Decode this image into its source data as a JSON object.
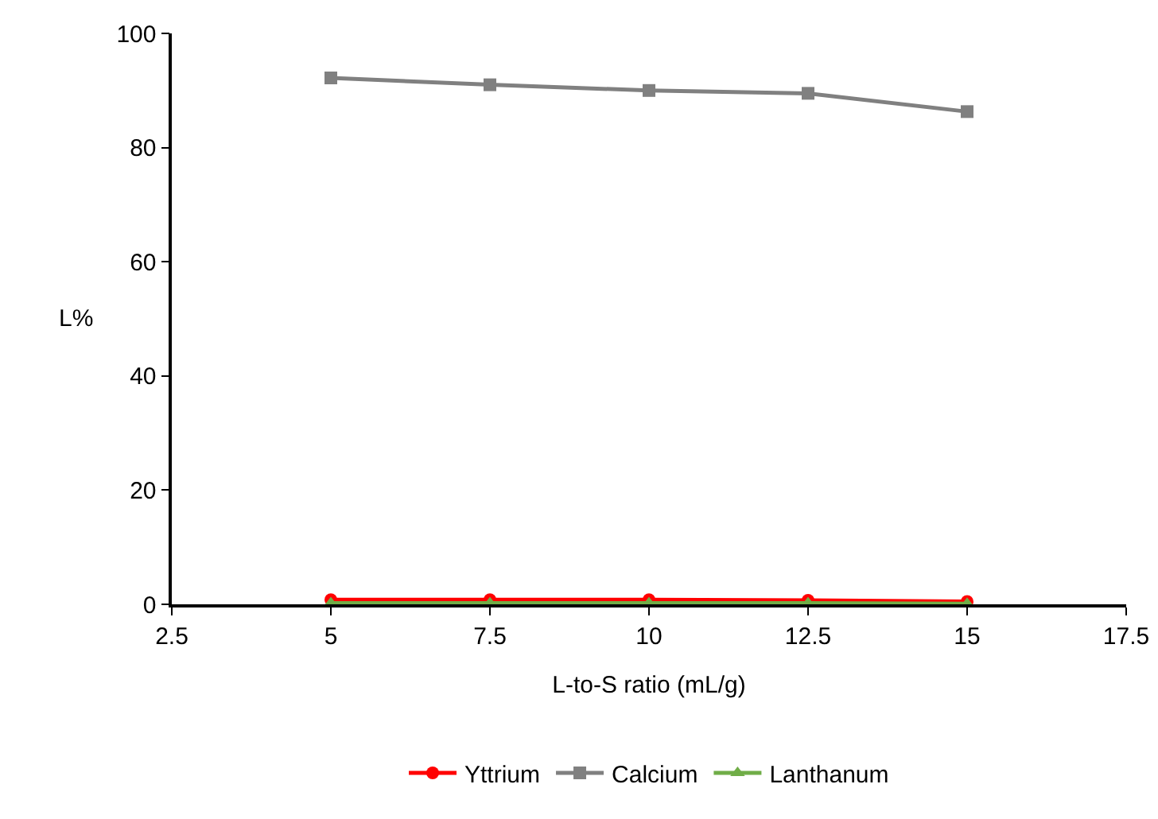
{
  "chart_data": {
    "type": "line",
    "xlabel": "L-to-S ratio (mL/g)",
    "ylabel": "L%",
    "x": [
      5,
      7.5,
      10,
      12.5,
      15
    ],
    "series": [
      {
        "name": "Yttrium",
        "color": "#ff0000",
        "marker": "circle",
        "values": [
          0.8,
          0.8,
          0.8,
          0.7,
          0.5
        ]
      },
      {
        "name": "Calcium",
        "color": "#808080",
        "marker": "square",
        "values": [
          92.2,
          91.0,
          90.0,
          89.5,
          86.3
        ]
      },
      {
        "name": "Lanthanum",
        "color": "#70ad47",
        "marker": "triangle",
        "values": [
          0.2,
          0.2,
          0.2,
          0.2,
          0.1
        ]
      }
    ],
    "xlim": [
      2.5,
      17.5
    ],
    "xticks": [
      2.5,
      5,
      7.5,
      10,
      12.5,
      15,
      17.5
    ],
    "ylim": [
      0,
      100
    ],
    "yticks": [
      0,
      20,
      40,
      60,
      80,
      100
    ],
    "grid": false,
    "legend": "bottom",
    "line_style": "solid"
  }
}
